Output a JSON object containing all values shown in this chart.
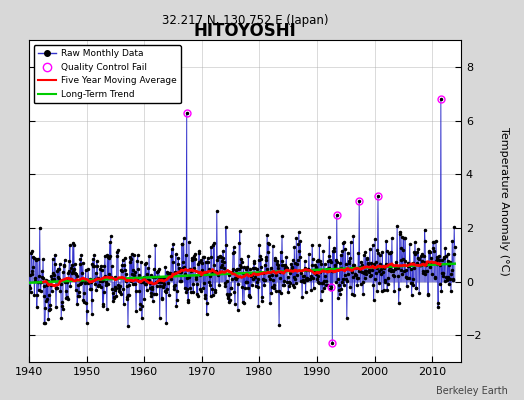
{
  "title": "HITOYOSHI",
  "subtitle": "32.217 N, 130.752 E (Japan)",
  "ylabel": "Temperature Anomaly (°C)",
  "credit": "Berkeley Earth",
  "xlim": [
    1940,
    2015
  ],
  "ylim": [
    -3,
    9
  ],
  "yticks": [
    -2,
    0,
    2,
    4,
    6,
    8
  ],
  "xticks": [
    1940,
    1950,
    1960,
    1970,
    1980,
    1990,
    2000,
    2010
  ],
  "fig_bg_color": "#d8d8d8",
  "plot_bg_color": "#ffffff",
  "raw_line_color": "#3333cc",
  "raw_dot_color": "#000000",
  "qc_color": "#ff00ff",
  "moving_avg_color": "#ff0000",
  "trend_color": "#00cc00",
  "seed": 12345,
  "start_year": 1940,
  "end_year": 2013
}
